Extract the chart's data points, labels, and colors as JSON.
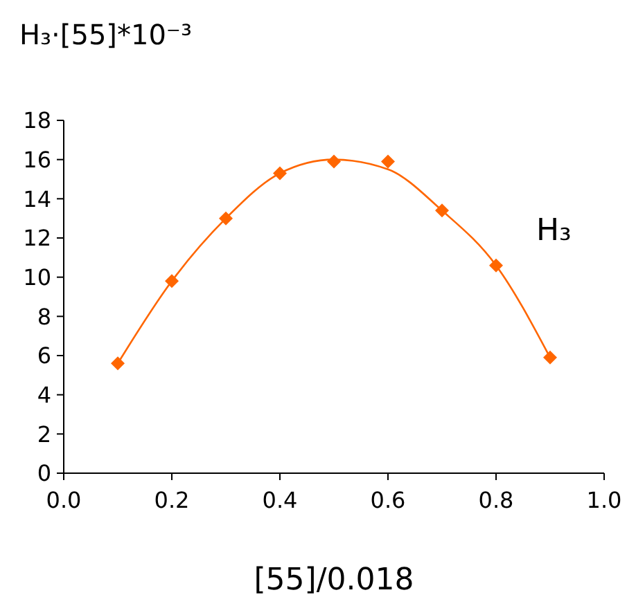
{
  "chart_data": {
    "type": "scatter",
    "title": "H₃·[55]*10⁻³",
    "xlabel": "[55]/0.018",
    "xlim": [
      0,
      1
    ],
    "xticks": [
      {
        "value": 0,
        "label": "0.0"
      },
      {
        "value": 0.2,
        "label": "0.2"
      },
      {
        "value": 0.4,
        "label": "0.4"
      },
      {
        "value": 0.6,
        "label": "0.6"
      },
      {
        "value": 0.8,
        "label": "0.8"
      },
      {
        "value": 1,
        "label": "1.0"
      }
    ],
    "ylim": [
      0,
      18
    ],
    "yticks": [
      0,
      2,
      4,
      6,
      8,
      10,
      12,
      14,
      16,
      18
    ],
    "marker": "diamond",
    "grid": false,
    "x": [
      0.1,
      0.2,
      0.3,
      0.4,
      0.5,
      0.6,
      0.7,
      0.8,
      0.9
    ],
    "series": [
      {
        "color": "#ff6600",
        "values": [
          5.6,
          9.8,
          13.0,
          15.3,
          15.9,
          15.9,
          13.4,
          10.6,
          5.9
        ]
      },
      {
        "type": "line",
        "name": "H₃",
        "color": "#ff6600",
        "marker": "none",
        "x": [
          0.1,
          0.2,
          0.3,
          0.4,
          0.5,
          0.6,
          0.7,
          0.8,
          0.9
        ],
        "values": [
          5.6,
          9.8,
          13.0,
          15.3,
          16.0,
          15.5,
          13.4,
          10.6,
          5.9
        ]
      }
    ]
  }
}
